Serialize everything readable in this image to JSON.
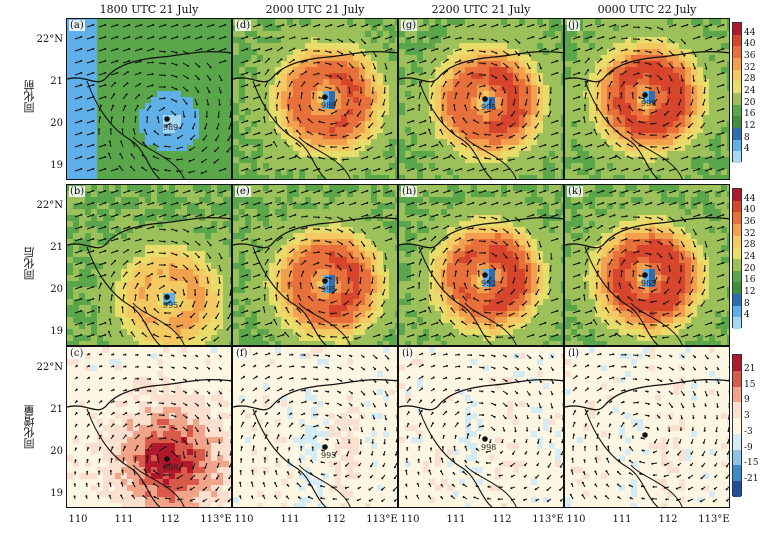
{
  "column_titles": [
    "1800 UTC 21 July",
    "2000 UTC 21 July",
    "2200 UTC 21 July",
    "0000 UTC 22 July"
  ],
  "row_labels": [
    "同化前",
    "同化后",
    "同化增量"
  ],
  "panel_labels": [
    [
      "(a)",
      "(d)",
      "(g)",
      "(j)"
    ],
    [
      "(b)",
      "(e)",
      "(h)",
      "(k)"
    ],
    [
      "(c)",
      "(f)",
      "(i)",
      "(l)"
    ]
  ],
  "y_ticks": [
    "22°N",
    "21",
    "20",
    "19"
  ],
  "x_ticks": [
    "110",
    "111",
    "112",
    "113°E"
  ],
  "colorbars": [
    {
      "ticks": [
        "44",
        "40",
        "36",
        "32",
        "28",
        "24",
        "20",
        "16",
        "12",
        "8",
        "4"
      ],
      "colors": [
        "#b2182b",
        "#d6452c",
        "#e8713b",
        "#f2a04d",
        "#f4c961",
        "#e8dc6a",
        "#9cc15a",
        "#5aa64b",
        "#3f8f3f",
        "#2e6db4",
        "#5fb0e8",
        "#a4d8f5"
      ]
    },
    {
      "ticks": [
        "44",
        "40",
        "36",
        "32",
        "28",
        "24",
        "20",
        "16",
        "12",
        "8",
        "4"
      ],
      "colors": [
        "#b2182b",
        "#d6452c",
        "#e8713b",
        "#f2a04d",
        "#f4c961",
        "#e8dc6a",
        "#9cc15a",
        "#5aa64b",
        "#3f8f3f",
        "#2e6db4",
        "#5fb0e8",
        "#a4d8f5"
      ]
    },
    {
      "ticks": [
        "21",
        "15",
        "9",
        "3",
        "-3",
        "-9",
        "-15",
        "-21"
      ],
      "colors": [
        "#b2182b",
        "#d95a4a",
        "#f0a48a",
        "#fbe0cf",
        "#fdf6e3",
        "#d6ecf4",
        "#8cc4e6",
        "#3f8bc9",
        "#1f4f9c"
      ]
    }
  ],
  "annotations": [
    "989",
    "989",
    "995",
    "998",
    "995",
    "995",
    "992",
    "985",
    "989",
    "995",
    "998"
  ]
}
